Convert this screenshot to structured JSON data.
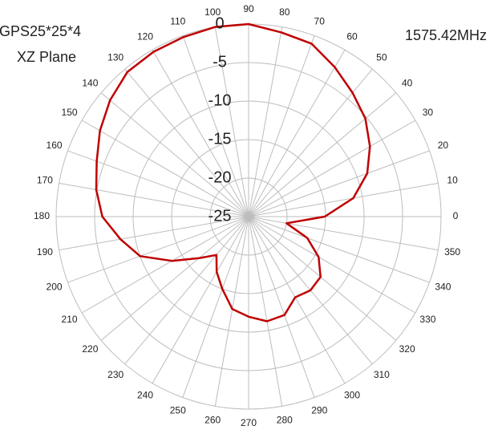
{
  "chart_data": {
    "type": "polar",
    "title": "GPS25*25*4",
    "subtitle": "XZ Plane",
    "annotation": "1575.42MHz",
    "angles": [
      0,
      10,
      20,
      30,
      40,
      50,
      60,
      70,
      80,
      90,
      100,
      110,
      120,
      130,
      140,
      150,
      160,
      170,
      180,
      190,
      200,
      210,
      220,
      230,
      240,
      250,
      260,
      270,
      280,
      290,
      300,
      310,
      320,
      330,
      340,
      350
    ],
    "rlim": [
      -25,
      0
    ],
    "rticks": [
      -25,
      -20,
      -15,
      -10,
      -5,
      0
    ],
    "grid": true,
    "series": [
      {
        "color": "#c00000",
        "values": [
          -15.1,
          -11.2,
          -8.6,
          -6.8,
          -5.2,
          -4.0,
          -2.6,
          -1.1,
          -0.7,
          0,
          0,
          -0.2,
          -0.3,
          -0.5,
          -1.5,
          -2.7,
          -4.0,
          -4.9,
          -6.0,
          -8.1,
          -10.0,
          -13.5,
          -16.6,
          -18.5,
          -16.7,
          -15.0,
          -12.8,
          -12.0,
          -11.2,
          -11.4,
          -12.9,
          -12.5,
          -12.8,
          -14.5,
          -16.9,
          -20.0
        ]
      }
    ]
  }
}
